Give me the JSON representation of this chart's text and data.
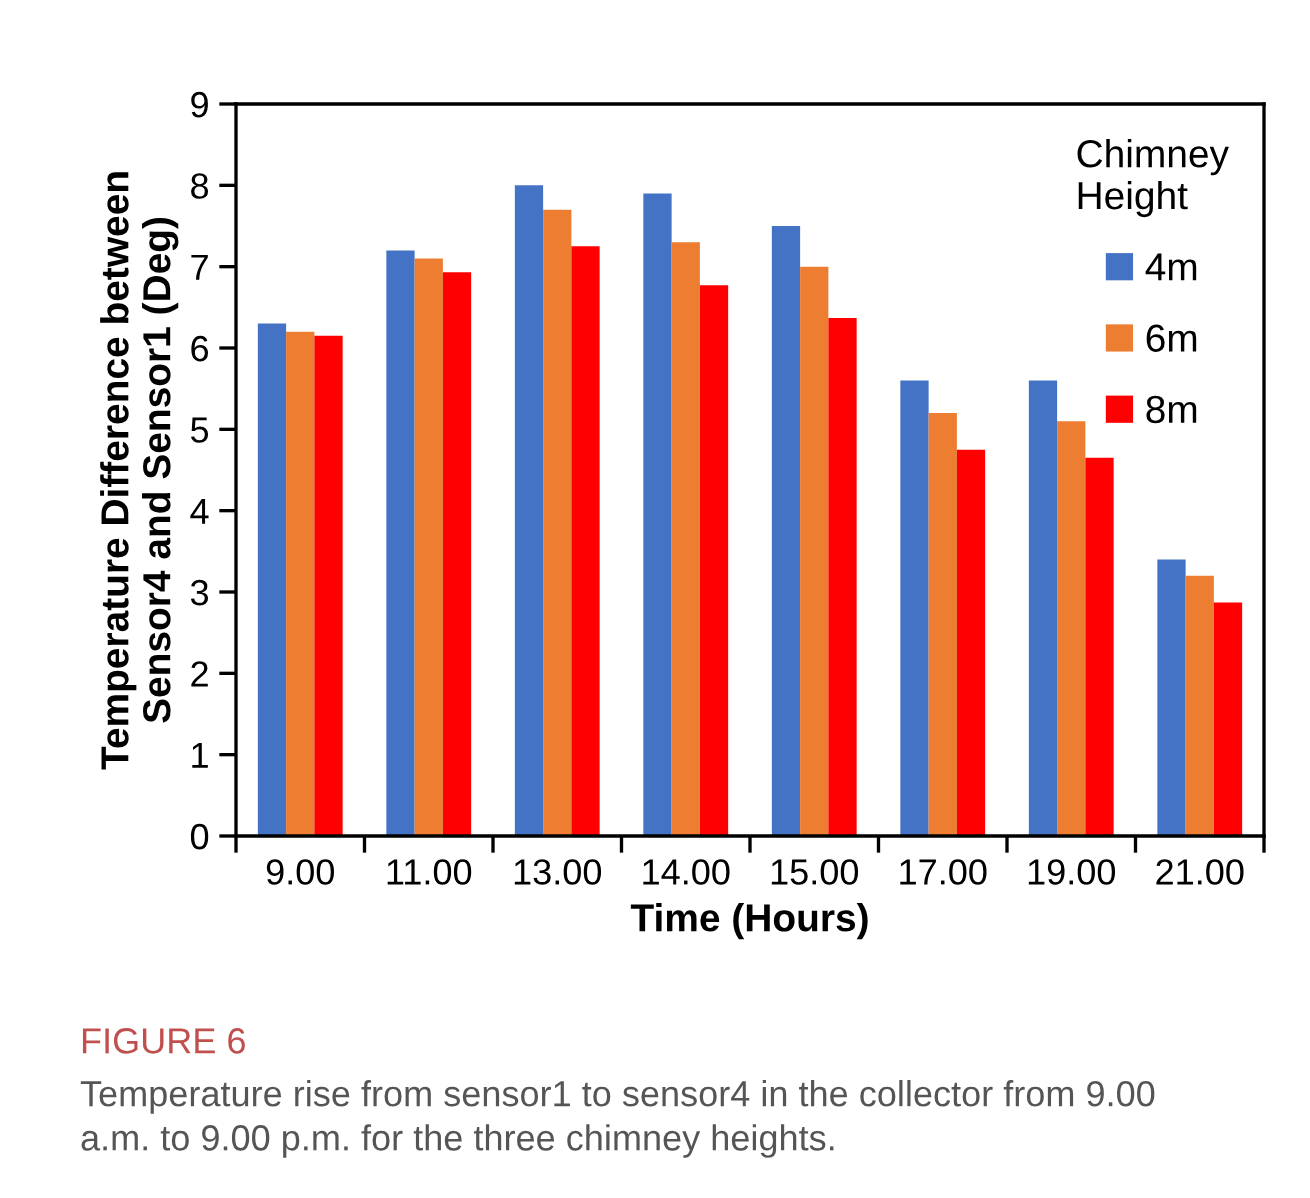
{
  "chart_data": {
    "type": "bar",
    "xlabel": "Time (Hours)",
    "ylabel": "Temperature Difference between\nSensor4 and Sensor1 (Deg)",
    "categories": [
      "9.00",
      "11.00",
      "13.00",
      "14.00",
      "15.00",
      "17.00",
      "19.00",
      "21.00"
    ],
    "series": [
      {
        "name": "4m",
        "color": "#4472c4",
        "values": [
          6.3,
          7.2,
          8.0,
          7.9,
          7.5,
          5.6,
          5.6,
          3.4
        ]
      },
      {
        "name": "6m",
        "color": "#ed7d31",
        "values": [
          6.2,
          7.1,
          7.7,
          7.3,
          7.0,
          5.2,
          5.1,
          3.2
        ]
      },
      {
        "name": "8m",
        "color": "#ff0000",
        "values": [
          6.15,
          6.93,
          7.25,
          6.77,
          6.37,
          4.75,
          4.65,
          2.87
        ]
      }
    ],
    "ylim": [
      0,
      9
    ],
    "yticks": [
      0,
      1,
      2,
      3,
      4,
      5,
      6,
      7,
      8,
      9
    ],
    "legend": "top right",
    "legend_title": "Chimney\nHeight",
    "grid": false,
    "annotations": [
      "FIGURE 6",
      "Temperature rise from sensor1 to sensor4 in the collector from 9.00 a.m. to 9.00 p.m. for the three chimney heights."
    ]
  }
}
